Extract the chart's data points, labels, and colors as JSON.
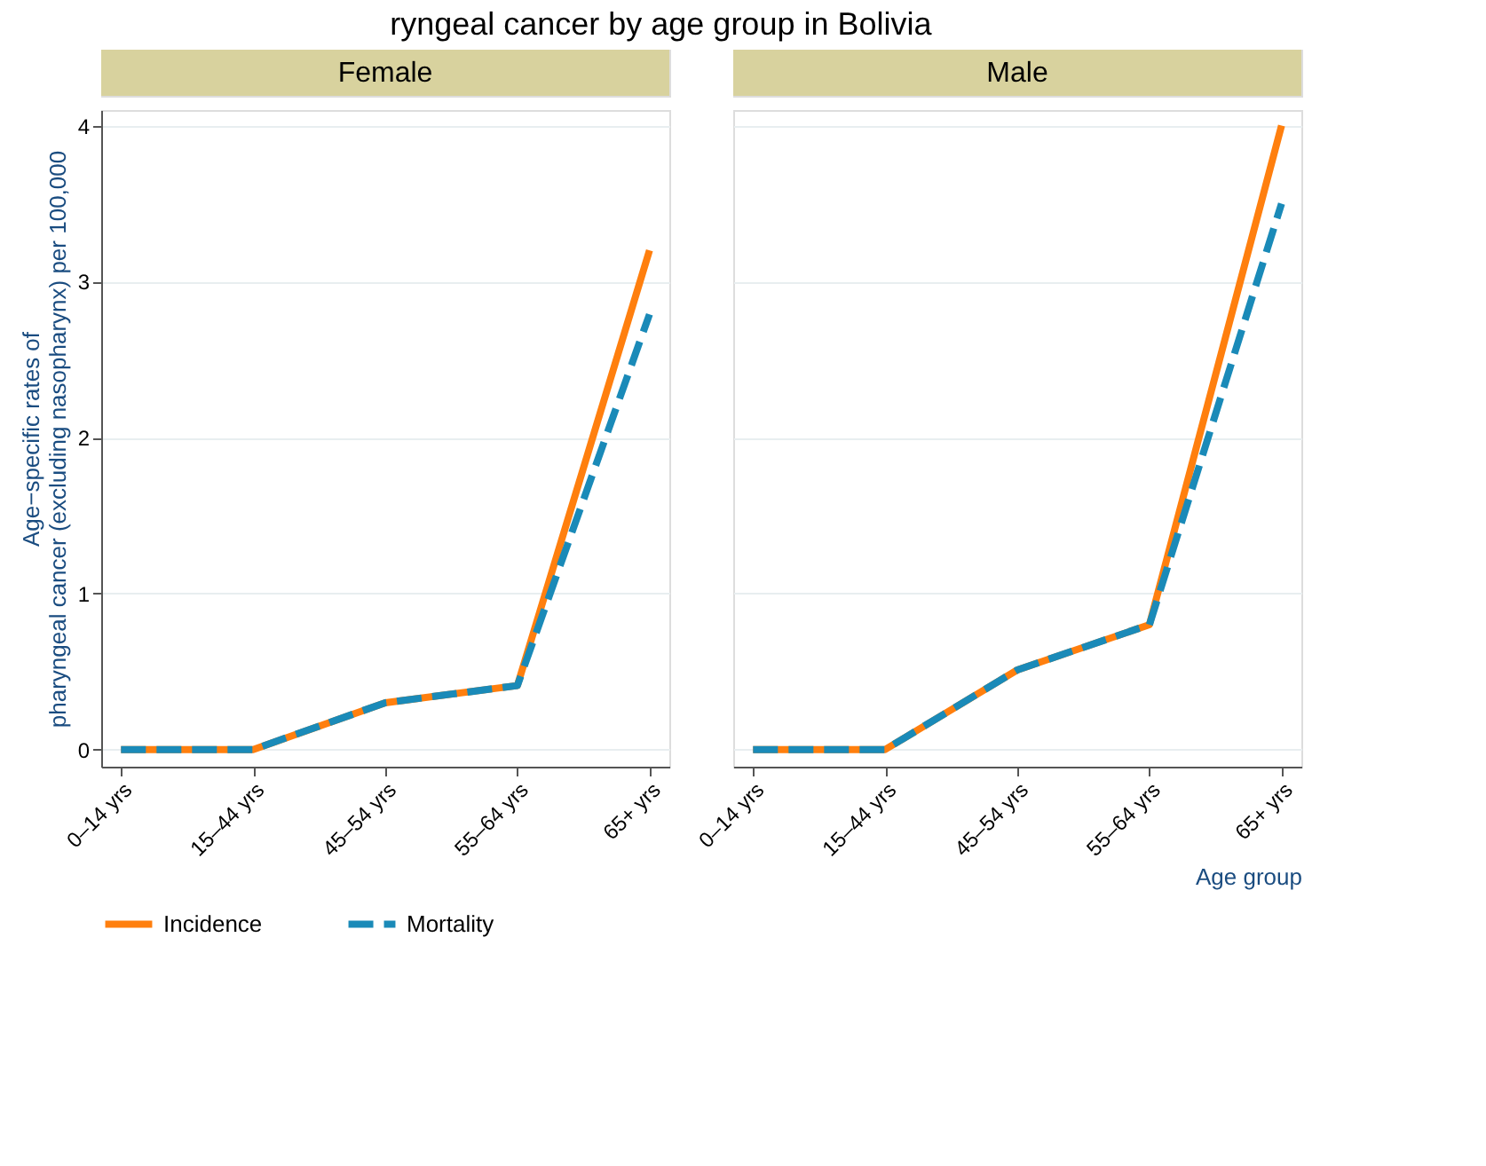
{
  "chart_data": [
    {
      "type": "line",
      "title": "Female",
      "annotations": [
        "ryngeal cancer by age group in Bolivia"
      ],
      "ylabel": "Age−specific rates of\npharyngeal cancer (excluding nasopharynx) per 100,000",
      "categories": [
        "0–14 yrs",
        "15–44 yrs",
        "45–54 yrs",
        "55–64 yrs",
        "65+ yrs"
      ],
      "series": [
        {
          "name": "Incidence",
          "color": "#ff7f0e",
          "line_style": "solid",
          "values": [
            0,
            0,
            0.3,
            0.41,
            3.2
          ]
        },
        {
          "name": "Mortality",
          "color": "#1a8ab8",
          "line_style": "dashed",
          "values": [
            0,
            0,
            0.3,
            0.41,
            2.79
          ]
        }
      ],
      "ylim": [
        -0.11,
        4.1
      ],
      "yticks": [
        0,
        1,
        2,
        3,
        4
      ],
      "grid": "y",
      "legend": "bottom"
    },
    {
      "type": "line",
      "title": "Male",
      "xlabel": "Age group",
      "categories": [
        "0–14 yrs",
        "15–44 yrs",
        "45–54 yrs",
        "55–64 yrs",
        "65+ yrs"
      ],
      "series": [
        {
          "color": "#ff7f0e",
          "line_style": "solid",
          "values": [
            0,
            0,
            0.51,
            0.8,
            4.0
          ]
        },
        {
          "color": "#1a8ab8",
          "line_style": "dashed",
          "values": [
            0,
            0,
            0.51,
            0.8,
            3.5
          ]
        }
      ],
      "ylim": [
        -0.11,
        4.1
      ],
      "yticks": [
        0,
        1,
        2,
        3,
        4
      ],
      "grid": "y",
      "tick_labels": "x",
      "legend": "bottom"
    }
  ]
}
